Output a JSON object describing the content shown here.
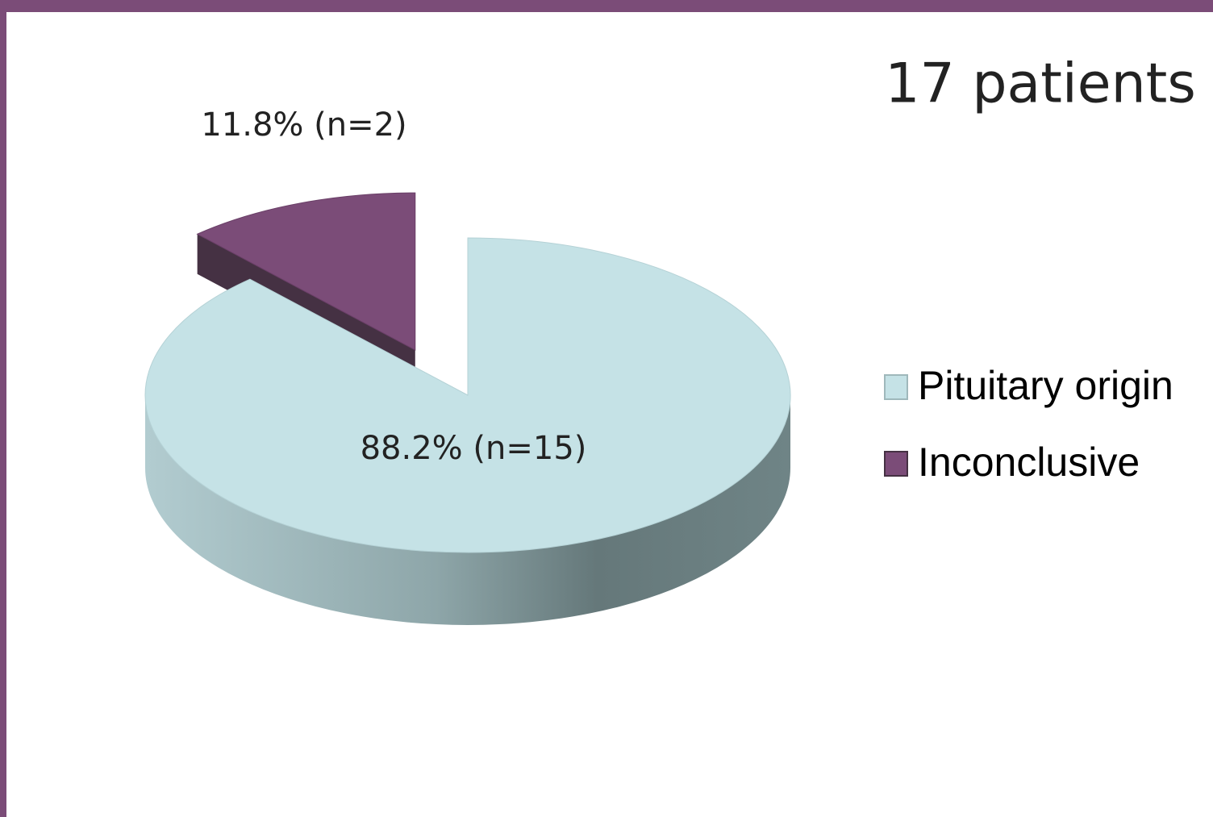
{
  "chart_data": {
    "type": "pie",
    "title": "17 patients",
    "categories": [
      "Pituitary origin",
      "Inconclusive"
    ],
    "values": [
      88.2,
      11.8
    ],
    "value_labels": [
      "88.2% (n=15)",
      "11.8% (n=2)"
    ],
    "colors": [
      "#c5e2e6",
      "#7b4c78"
    ],
    "legend": "right"
  }
}
